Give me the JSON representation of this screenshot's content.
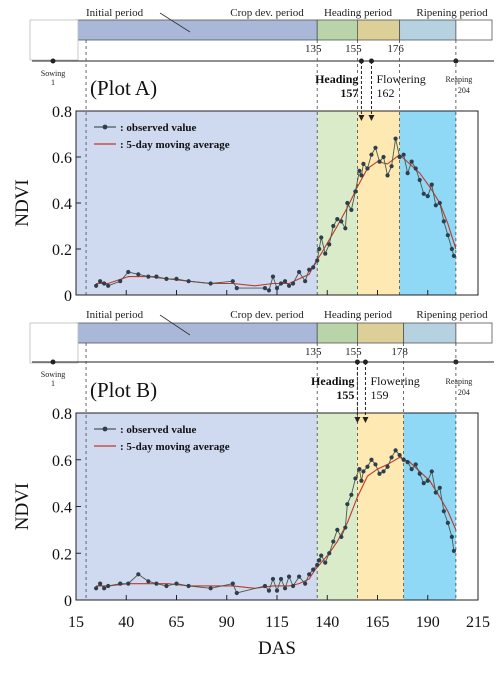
{
  "chart_data": {
    "type": "line",
    "xlabel": "DAS",
    "ylabel": "NDVI",
    "xlim": [
      15,
      215
    ],
    "xticks": [
      15,
      40,
      65,
      90,
      115,
      140,
      165,
      190,
      215
    ],
    "ylim": [
      0,
      0.8
    ],
    "yticks": [
      0,
      0.2,
      0.4,
      0.6,
      0.8
    ],
    "ytick_labels": [
      "0",
      "0.2",
      "0.4",
      "0.6",
      "0.8"
    ],
    "colors": {
      "initial_bar": "#a9b8d8",
      "cropdev_bar": "#b8d4a8",
      "heading_bar": "#dccf98",
      "ripening_bar": "#b6d2e0",
      "initial_bg": "#cfdaf0",
      "cropdev_bg": "#d9ebc9",
      "heading_bg": "#fde9b1",
      "ripening_bg": "#8fd8f6",
      "observed": "#2d3e4e",
      "moving_average": "#c0392b"
    },
    "legend": {
      "observed": ": observed value",
      "moving_average": ": 5-day moving average"
    },
    "period_labels": [
      "Initial period",
      "Crop dev. period",
      "Heading period",
      "Ripening period"
    ],
    "sowing": {
      "label": "Sowing",
      "day": "1"
    },
    "reaping": {
      "label": "Reaping",
      "day": "204"
    },
    "panels": [
      {
        "name": "Plot A",
        "title": "(Plot A)",
        "period_bounds": [
          0,
          135,
          155,
          176,
          204
        ],
        "boundary_labels": [
          "135",
          "155",
          "176"
        ],
        "heading": {
          "label": "Heading",
          "day": 157
        },
        "flowering": {
          "label": "Flowering",
          "day": 162
        },
        "observed": {
          "x": [
            25,
            27,
            29,
            31,
            37,
            41,
            46,
            51,
            55,
            60,
            65,
            71,
            82,
            93,
            95,
            109,
            111,
            113,
            115,
            117,
            119,
            121,
            123,
            126,
            129,
            131,
            133,
            135,
            136,
            137,
            139,
            141,
            143,
            145,
            147,
            149,
            150,
            152,
            154,
            156,
            157,
            158,
            160,
            162,
            164,
            166,
            168,
            170,
            172,
            174,
            176,
            178,
            180,
            182,
            184,
            186,
            188,
            190,
            192,
            194,
            196,
            198,
            200,
            202,
            203
          ],
          "y": [
            0.04,
            0.06,
            0.05,
            0.04,
            0.06,
            0.1,
            0.09,
            0.08,
            0.08,
            0.07,
            0.07,
            0.06,
            0.05,
            0.06,
            0.03,
            0.03,
            0.02,
            0.08,
            0.03,
            0.05,
            0.06,
            0.04,
            0.05,
            0.1,
            0.06,
            0.11,
            0.12,
            0.15,
            0.2,
            0.25,
            0.18,
            0.22,
            0.3,
            0.33,
            0.32,
            0.29,
            0.4,
            0.37,
            0.45,
            0.54,
            0.52,
            0.57,
            0.55,
            0.61,
            0.64,
            0.58,
            0.6,
            0.52,
            0.56,
            0.68,
            0.6,
            0.61,
            0.53,
            0.58,
            0.55,
            0.5,
            0.44,
            0.43,
            0.48,
            0.39,
            0.4,
            0.32,
            0.26,
            0.2,
            0.17
          ]
        },
        "moving_average": {
          "x": [
            25,
            31,
            41,
            51,
            61,
            71,
            82,
            93,
            104,
            113,
            121,
            126,
            131,
            134,
            137,
            141,
            145,
            150,
            155,
            160,
            165,
            170,
            176,
            181,
            186,
            191,
            196,
            200,
            204
          ],
          "y": [
            0.05,
            0.05,
            0.08,
            0.08,
            0.07,
            0.06,
            0.05,
            0.05,
            0.04,
            0.05,
            0.05,
            0.07,
            0.09,
            0.14,
            0.18,
            0.24,
            0.3,
            0.38,
            0.47,
            0.55,
            0.58,
            0.57,
            0.61,
            0.57,
            0.53,
            0.47,
            0.4,
            0.31,
            0.2
          ]
        }
      },
      {
        "name": "Plot B",
        "title": "(Plot B)",
        "period_bounds": [
          0,
          135,
          155,
          178,
          204
        ],
        "boundary_labels": [
          "135",
          "155",
          "178"
        ],
        "heading": {
          "label": "Heading",
          "day": 155
        },
        "flowering": {
          "label": "Flowering",
          "day": 159
        },
        "observed": {
          "x": [
            25,
            27,
            29,
            31,
            37,
            41,
            46,
            51,
            55,
            60,
            65,
            71,
            82,
            93,
            95,
            109,
            111,
            113,
            115,
            117,
            119,
            121,
            123,
            126,
            129,
            131,
            133,
            135,
            136,
            137,
            139,
            141,
            143,
            145,
            147,
            149,
            150,
            152,
            154,
            156,
            157,
            158,
            160,
            162,
            164,
            166,
            168,
            170,
            172,
            174,
            176,
            178,
            180,
            182,
            184,
            186,
            188,
            190,
            192,
            194,
            196,
            198,
            200,
            202,
            203
          ],
          "y": [
            0.05,
            0.07,
            0.05,
            0.06,
            0.07,
            0.07,
            0.11,
            0.08,
            0.07,
            0.06,
            0.07,
            0.06,
            0.05,
            0.07,
            0.03,
            0.06,
            0.04,
            0.09,
            0.04,
            0.09,
            0.05,
            0.1,
            0.06,
            0.1,
            0.07,
            0.11,
            0.13,
            0.15,
            0.17,
            0.19,
            0.16,
            0.2,
            0.25,
            0.3,
            0.27,
            0.31,
            0.41,
            0.45,
            0.52,
            0.56,
            0.51,
            0.55,
            0.57,
            0.6,
            0.58,
            0.54,
            0.55,
            0.57,
            0.61,
            0.64,
            0.62,
            0.6,
            0.59,
            0.56,
            0.58,
            0.54,
            0.5,
            0.51,
            0.55,
            0.46,
            0.48,
            0.38,
            0.33,
            0.27,
            0.21
          ]
        },
        "moving_average": {
          "x": [
            25,
            31,
            41,
            51,
            61,
            71,
            82,
            93,
            104,
            113,
            121,
            126,
            131,
            134,
            137,
            141,
            145,
            150,
            155,
            160,
            165,
            170,
            176,
            181,
            186,
            191,
            196,
            200,
            204
          ],
          "y": [
            0.06,
            0.06,
            0.07,
            0.07,
            0.07,
            0.06,
            0.06,
            0.06,
            0.05,
            0.06,
            0.06,
            0.07,
            0.09,
            0.13,
            0.16,
            0.2,
            0.25,
            0.33,
            0.44,
            0.53,
            0.56,
            0.58,
            0.61,
            0.59,
            0.55,
            0.51,
            0.44,
            0.38,
            0.3
          ]
        }
      }
    ]
  }
}
